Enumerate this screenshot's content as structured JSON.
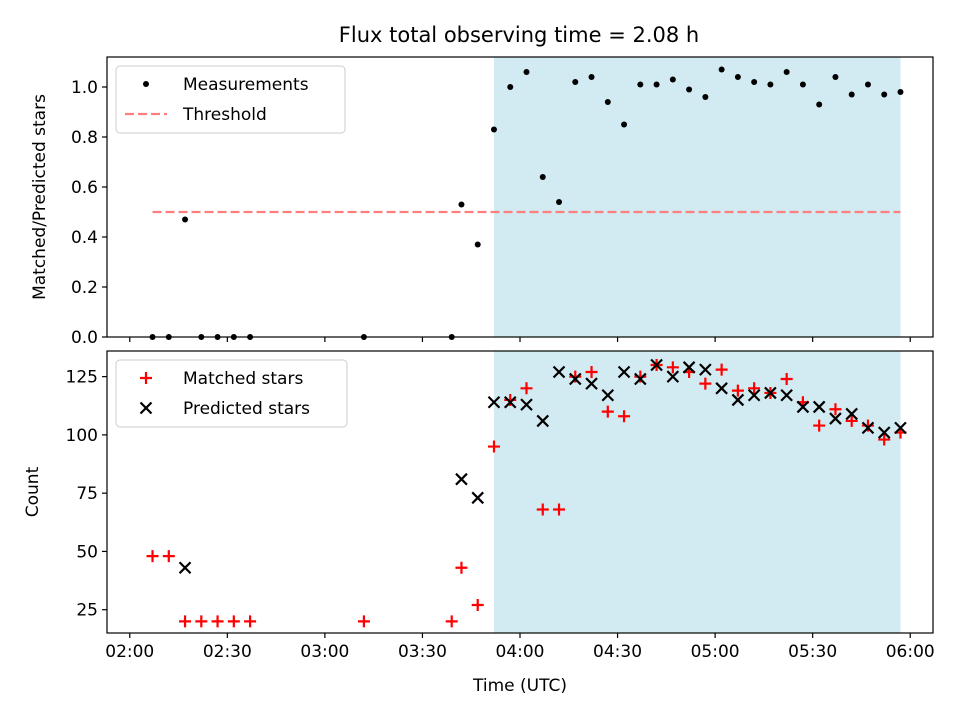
{
  "title": "Flux total observing time = 2.08 h",
  "chart_data": [
    {
      "type": "scatter",
      "ylabel": "Matched/Predicted stars",
      "ylim": [
        0,
        1.12
      ],
      "xlim": [
        "01:53",
        "06:07"
      ],
      "x_ticks": [
        "02:00",
        "02:30",
        "03:00",
        "03:30",
        "04:00",
        "04:30",
        "05:00",
        "05:30",
        "06:00"
      ],
      "y_ticks": [
        "0.0",
        "0.2",
        "0.4",
        "0.6",
        "0.8",
        "1.0"
      ],
      "y_tick_values": [
        0,
        0.2,
        0.4,
        0.6,
        0.8,
        1.0
      ],
      "shaded_region": {
        "x_start": "03:52",
        "x_end": "05:57",
        "color": "#add8e6"
      },
      "threshold": {
        "name": "Threshold",
        "value": 0.5,
        "x_start": "02:07",
        "x_end": "05:57",
        "color": "#ff7f7f"
      },
      "legend": {
        "position": "top-left",
        "entries": [
          "Measurements",
          "Threshold"
        ]
      },
      "series": [
        {
          "name": "Measurements",
          "color": "#000000",
          "marker": "dot",
          "points": [
            [
              "02:07",
              0.0
            ],
            [
              "02:12",
              0.0
            ],
            [
              "02:17",
              0.47
            ],
            [
              "02:22",
              0.0
            ],
            [
              "02:27",
              0.0
            ],
            [
              "02:32",
              0.0
            ],
            [
              "02:37",
              0.0
            ],
            [
              "03:12",
              0.0
            ],
            [
              "03:39",
              0.0
            ],
            [
              "03:42",
              0.53
            ],
            [
              "03:47",
              0.37
            ],
            [
              "03:52",
              0.83
            ],
            [
              "03:57",
              1.0
            ],
            [
              "04:02",
              1.06
            ],
            [
              "04:07",
              0.64
            ],
            [
              "04:12",
              0.54
            ],
            [
              "04:17",
              1.02
            ],
            [
              "04:22",
              1.04
            ],
            [
              "04:27",
              0.94
            ],
            [
              "04:32",
              0.85
            ],
            [
              "04:37",
              1.01
            ],
            [
              "04:42",
              1.01
            ],
            [
              "04:47",
              1.03
            ],
            [
              "04:52",
              0.99
            ],
            [
              "04:57",
              0.96
            ],
            [
              "05:02",
              1.07
            ],
            [
              "05:07",
              1.04
            ],
            [
              "05:12",
              1.02
            ],
            [
              "05:17",
              1.01
            ],
            [
              "05:22",
              1.06
            ],
            [
              "05:27",
              1.01
            ],
            [
              "05:32",
              0.93
            ],
            [
              "05:37",
              1.04
            ],
            [
              "05:42",
              0.97
            ],
            [
              "05:47",
              1.01
            ],
            [
              "05:52",
              0.97
            ],
            [
              "05:57",
              0.98
            ]
          ]
        }
      ]
    },
    {
      "type": "scatter",
      "xlabel": "Time (UTC)",
      "ylabel": "Count",
      "ylim": [
        15,
        136
      ],
      "xlim": [
        "01:53",
        "06:07"
      ],
      "x_ticks": [
        "02:00",
        "02:30",
        "03:00",
        "03:30",
        "04:00",
        "04:30",
        "05:00",
        "05:30",
        "06:00"
      ],
      "y_ticks": [
        "25",
        "50",
        "75",
        "100",
        "125"
      ],
      "y_tick_values": [
        25,
        50,
        75,
        100,
        125
      ],
      "shaded_region": {
        "x_start": "03:52",
        "x_end": "05:57",
        "color": "#add8e6"
      },
      "legend": {
        "position": "top-left",
        "entries": [
          "Matched stars",
          "Predicted stars"
        ]
      },
      "series": [
        {
          "name": "Matched stars",
          "color": "#ff0000",
          "marker": "plus",
          "points": [
            [
              "02:07",
              48
            ],
            [
              "02:12",
              48
            ],
            [
              "02:17",
              20
            ],
            [
              "02:22",
              20
            ],
            [
              "02:27",
              20
            ],
            [
              "02:32",
              20
            ],
            [
              "02:37",
              20
            ],
            [
              "03:12",
              20
            ],
            [
              "03:39",
              20
            ],
            [
              "03:42",
              43
            ],
            [
              "03:47",
              27
            ],
            [
              "03:52",
              95
            ],
            [
              "03:57",
              115
            ],
            [
              "04:02",
              120
            ],
            [
              "04:07",
              68
            ],
            [
              "04:12",
              68
            ],
            [
              "04:17",
              125
            ],
            [
              "04:22",
              127
            ],
            [
              "04:27",
              110
            ],
            [
              "04:32",
              108
            ],
            [
              "04:37",
              125
            ],
            [
              "04:42",
              130
            ],
            [
              "04:47",
              129
            ],
            [
              "04:52",
              127
            ],
            [
              "04:57",
              122
            ],
            [
              "05:02",
              128
            ],
            [
              "05:07",
              119
            ],
            [
              "05:12",
              120
            ],
            [
              "05:17",
              118
            ],
            [
              "05:22",
              124
            ],
            [
              "05:27",
              114
            ],
            [
              "05:32",
              104
            ],
            [
              "05:37",
              111
            ],
            [
              "05:42",
              106
            ],
            [
              "05:47",
              104
            ],
            [
              "05:52",
              98
            ],
            [
              "05:57",
              101
            ]
          ]
        },
        {
          "name": "Predicted stars",
          "color": "#000000",
          "marker": "x",
          "points": [
            [
              "02:17",
              43
            ],
            [
              "03:42",
              81
            ],
            [
              "03:47",
              73
            ],
            [
              "03:52",
              114
            ],
            [
              "03:57",
              114
            ],
            [
              "04:02",
              113
            ],
            [
              "04:07",
              106
            ],
            [
              "04:12",
              127
            ],
            [
              "04:17",
              124
            ],
            [
              "04:22",
              122
            ],
            [
              "04:27",
              117
            ],
            [
              "04:32",
              127
            ],
            [
              "04:37",
              124
            ],
            [
              "04:42",
              130
            ],
            [
              "04:47",
              125
            ],
            [
              "04:52",
              129
            ],
            [
              "04:57",
              128
            ],
            [
              "05:02",
              120
            ],
            [
              "05:07",
              115
            ],
            [
              "05:12",
              117
            ],
            [
              "05:17",
              118
            ],
            [
              "05:22",
              117
            ],
            [
              "05:27",
              112
            ],
            [
              "05:32",
              112
            ],
            [
              "05:37",
              107
            ],
            [
              "05:42",
              109
            ],
            [
              "05:47",
              103
            ],
            [
              "05:52",
              101
            ],
            [
              "05:57",
              103
            ]
          ]
        }
      ]
    }
  ]
}
